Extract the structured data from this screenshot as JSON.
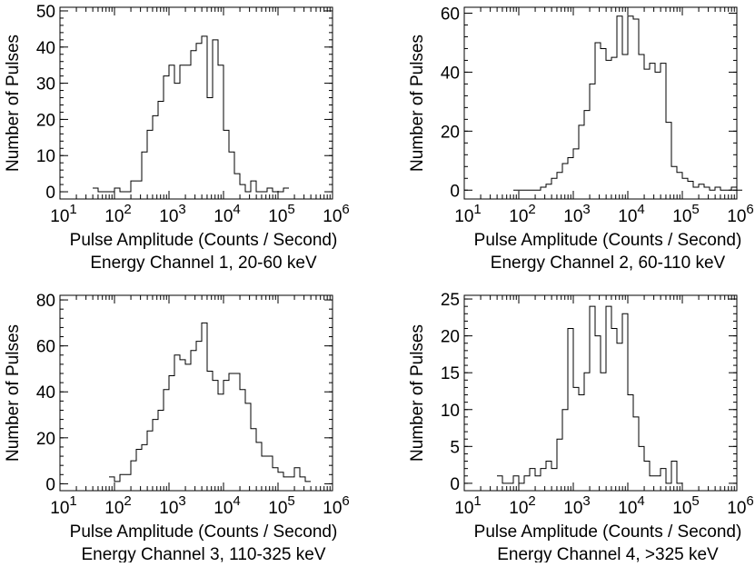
{
  "figure": {
    "colors": {
      "line": "#000000",
      "background": "#ffffff"
    }
  },
  "chart_data": [
    {
      "type": "histogram",
      "title": "Energy Channel 1, 20-60 keV",
      "xlabel": "Pulse Amplitude (Counts / Second)",
      "ylabel": "Number of Pulses",
      "xscale": "log",
      "xlim": [
        1,
        6
      ],
      "ylim": [
        -2,
        51
      ],
      "yticks": [
        0,
        10,
        20,
        30,
        40,
        50
      ],
      "ytick_labels": [
        "0",
        "10",
        "20",
        "30",
        "40",
        "50"
      ],
      "xticks": [
        1,
        2,
        3,
        4,
        5,
        6
      ],
      "xtick_labels": [
        {
          "base": "10",
          "exp": "1"
        },
        {
          "base": "10",
          "exp": "2"
        },
        {
          "base": "10",
          "exp": "3"
        },
        {
          "base": "10",
          "exp": "4"
        },
        {
          "base": "10",
          "exp": "5"
        },
        {
          "base": "10",
          "exp": "6"
        }
      ],
      "bin_width_log10": 0.1,
      "bin_start_log10": 1.6,
      "values": [
        1,
        0,
        0,
        0,
        1,
        0,
        0,
        3,
        3,
        11,
        17,
        21,
        25,
        32,
        35,
        30,
        35,
        35,
        39,
        41,
        43,
        26,
        42,
        35,
        17,
        11,
        5,
        2,
        0,
        3,
        0,
        0,
        1,
        0,
        0,
        1
      ]
    },
    {
      "type": "histogram",
      "title": "Energy Channel 2, 60-110 keV",
      "xlabel": "Pulse Amplitude (Counts / Second)",
      "ylabel": "Number of Pulses",
      "xscale": "log",
      "xlim": [
        1,
        6
      ],
      "ylim": [
        -3,
        62
      ],
      "yticks": [
        0,
        20,
        40,
        60
      ],
      "ytick_labels": [
        "0",
        "20",
        "40",
        "60"
      ],
      "xticks": [
        1,
        2,
        3,
        4,
        5,
        6
      ],
      "xtick_labels": [
        {
          "base": "10",
          "exp": "1"
        },
        {
          "base": "10",
          "exp": "2"
        },
        {
          "base": "10",
          "exp": "3"
        },
        {
          "base": "10",
          "exp": "4"
        },
        {
          "base": "10",
          "exp": "5"
        },
        {
          "base": "10",
          "exp": "6"
        }
      ],
      "bin_width_log10": 0.1,
      "bin_start_log10": 1.9,
      "values": [
        0,
        0,
        0,
        0,
        0,
        1,
        2,
        4,
        6,
        9,
        11,
        14,
        22,
        27,
        36,
        50,
        48,
        44,
        45,
        59,
        46,
        59,
        58,
        46,
        41,
        43,
        40,
        43,
        23,
        8,
        6,
        4,
        3,
        1,
        2,
        1,
        0,
        1,
        0,
        0,
        1,
        0
      ]
    },
    {
      "type": "histogram",
      "title": "Energy Channel 3, 110-325 keV",
      "xlabel": "Pulse Amplitude (Counts / Second)",
      "ylabel": "Number of Pulses",
      "xscale": "log",
      "xlim": [
        1,
        6
      ],
      "ylim": [
        -3,
        82
      ],
      "yticks": [
        0,
        20,
        40,
        60,
        80
      ],
      "ytick_labels": [
        "0",
        "20",
        "40",
        "60",
        "80"
      ],
      "xticks": [
        1,
        2,
        3,
        4,
        5,
        6
      ],
      "xtick_labels": [
        {
          "base": "10",
          "exp": "1"
        },
        {
          "base": "10",
          "exp": "2"
        },
        {
          "base": "10",
          "exp": "3"
        },
        {
          "base": "10",
          "exp": "4"
        },
        {
          "base": "10",
          "exp": "5"
        },
        {
          "base": "10",
          "exp": "6"
        }
      ],
      "bin_width_log10": 0.1,
      "bin_start_log10": 1.9,
      "values": [
        3,
        1,
        4,
        4,
        10,
        15,
        17,
        23,
        28,
        32,
        41,
        47,
        56,
        54,
        52,
        58,
        62,
        70,
        49,
        45,
        39,
        45,
        48,
        48,
        41,
        35,
        24,
        18,
        12,
        12,
        7,
        5,
        3,
        3,
        7,
        3,
        1
      ]
    },
    {
      "type": "histogram",
      "title": "Energy Channel 4, >325 keV",
      "xlabel": "Pulse Amplitude (Counts / Second)",
      "ylabel": "Number of Pulses",
      "xscale": "log",
      "xlim": [
        1,
        6
      ],
      "ylim": [
        -1,
        25.5
      ],
      "yticks": [
        0,
        5,
        10,
        15,
        20,
        25
      ],
      "ytick_labels": [
        "0",
        "5",
        "10",
        "15",
        "20",
        "25"
      ],
      "xticks": [
        1,
        2,
        3,
        4,
        5,
        6
      ],
      "xtick_labels": [
        {
          "base": "10",
          "exp": "1"
        },
        {
          "base": "10",
          "exp": "2"
        },
        {
          "base": "10",
          "exp": "3"
        },
        {
          "base": "10",
          "exp": "4"
        },
        {
          "base": "10",
          "exp": "5"
        },
        {
          "base": "10",
          "exp": "6"
        }
      ],
      "bin_width_log10": 0.1,
      "bin_start_log10": 1.6,
      "values": [
        1,
        0,
        0,
        1,
        0,
        1,
        2,
        1,
        2,
        3,
        2,
        6,
        10,
        21,
        13,
        12,
        15,
        24,
        20,
        15,
        24,
        21,
        19,
        23,
        12,
        9,
        5,
        3,
        1,
        1,
        2,
        0,
        3,
        0
      ]
    }
  ]
}
